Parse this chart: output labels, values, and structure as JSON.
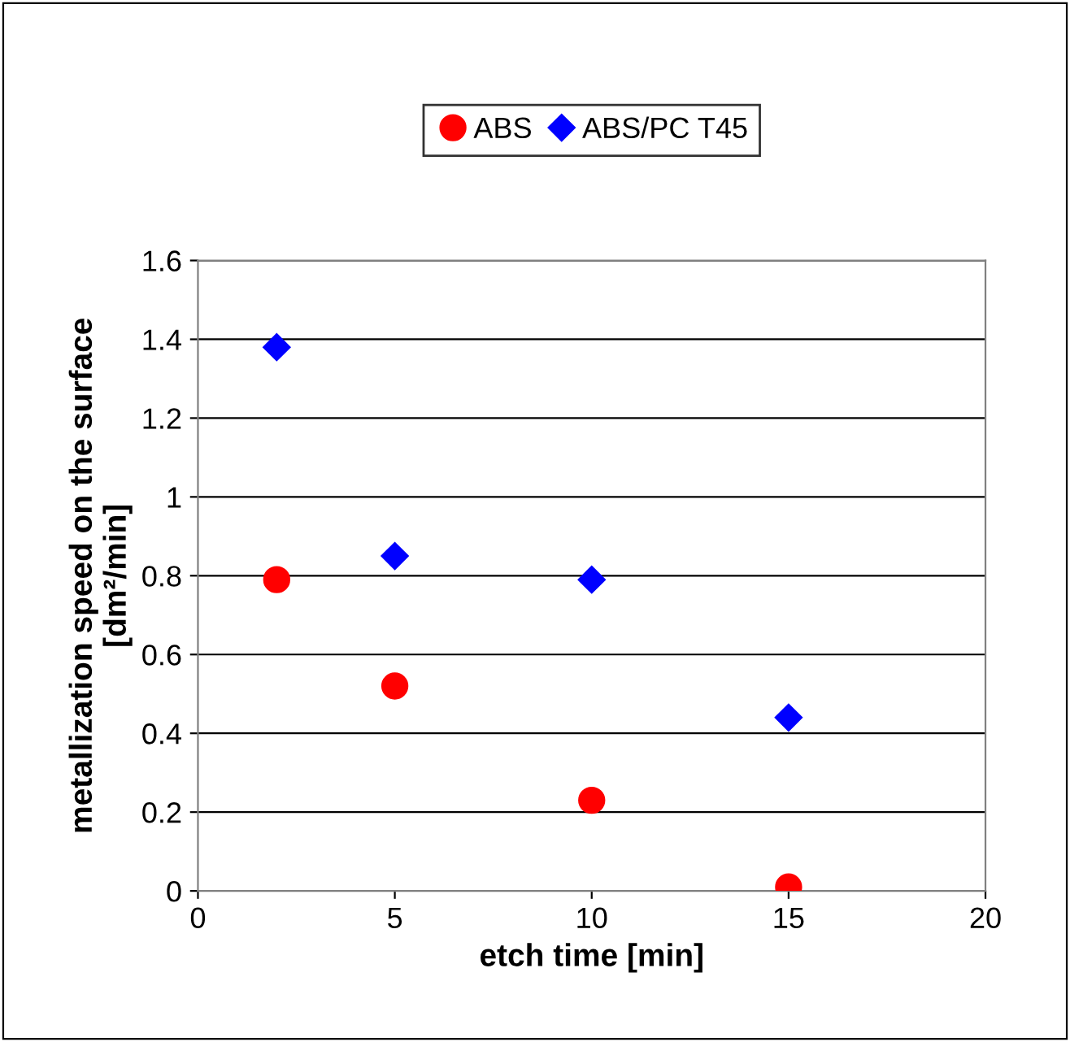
{
  "chart_data": {
    "type": "scatter",
    "xlabel": "etch time [min]",
    "ylabel": "metallization speed on the surface\n[dm²/min]",
    "series": [
      {
        "name": "ABS",
        "color": "#ff0000",
        "marker": "circle",
        "x": [
          2,
          5,
          10,
          15
        ],
        "values": [
          0.79,
          0.52,
          0.23,
          0.01
        ]
      },
      {
        "name": "ABS/PC T45",
        "color": "#0000ff",
        "marker": "diamond",
        "x": [
          2,
          5,
          10,
          15
        ],
        "values": [
          1.38,
          0.85,
          0.79,
          0.44
        ]
      }
    ],
    "xlim": [
      0,
      20
    ],
    "xticks": [
      0,
      5,
      10,
      15,
      20
    ],
    "ylim": [
      0,
      1.6
    ],
    "yticks": [
      0,
      0.2,
      0.4,
      0.6,
      0.8,
      1,
      1.2,
      1.4,
      1.6
    ],
    "grid": "y",
    "legend": "top"
  }
}
